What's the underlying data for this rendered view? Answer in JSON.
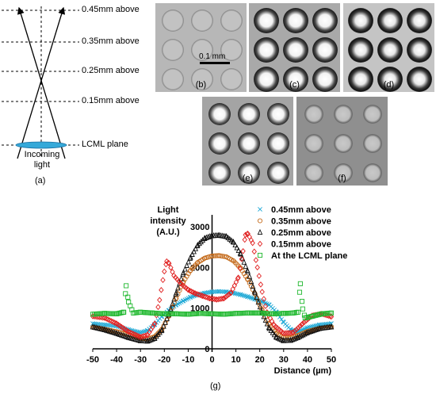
{
  "diagram": {
    "levels": [
      "0.45mm above",
      "0.35mm above",
      "0.25mm above",
      "0.15mm above",
      "LCML plane"
    ],
    "incoming_light": "Incoming\nlight",
    "caption": "(a)"
  },
  "micrographs": [
    {
      "caption": "(b)",
      "style": "faint"
    },
    {
      "caption": "(c)",
      "style": "ring"
    },
    {
      "caption": "(d)",
      "style": "dark-ring"
    },
    {
      "caption": "(e)",
      "style": "bright"
    },
    {
      "caption": "(f)",
      "style": "dim"
    }
  ],
  "scale_bar": "0.1 mm",
  "figure_caption": "(g)",
  "chart_data": {
    "type": "scatter",
    "ylabel": "Light\nintensity\n(A.U.)",
    "xlabel": "Distance (µm)",
    "xlim": [
      -50,
      50
    ],
    "ylim": [
      0,
      3000
    ],
    "x_ticks": [
      -50,
      -40,
      -30,
      -20,
      -10,
      0,
      10,
      20,
      30,
      40,
      50
    ],
    "y_ticks": [
      0,
      1000,
      2000,
      3000
    ],
    "legend_position": "top-right",
    "series": [
      {
        "name": "0.45mm above",
        "marker": "x",
        "color": "#1fa9d6",
        "points": [
          [
            -50,
            620
          ],
          [
            -45,
            590
          ],
          [
            -40,
            560
          ],
          [
            -35,
            470
          ],
          [
            -30,
            400
          ],
          [
            -27,
            450
          ],
          [
            -24,
            600
          ],
          [
            -21,
            800
          ],
          [
            -18,
            950
          ],
          [
            -15,
            1080
          ],
          [
            -12,
            1180
          ],
          [
            -9,
            1270
          ],
          [
            -6,
            1330
          ],
          [
            -3,
            1370
          ],
          [
            0,
            1400
          ],
          [
            3,
            1410
          ],
          [
            6,
            1400
          ],
          [
            9,
            1370
          ],
          [
            12,
            1330
          ],
          [
            15,
            1280
          ],
          [
            18,
            1220
          ],
          [
            21,
            1160
          ],
          [
            24,
            1080
          ],
          [
            27,
            900
          ],
          [
            30,
            650
          ],
          [
            33,
            470
          ],
          [
            36,
            420
          ],
          [
            40,
            520
          ],
          [
            45,
            590
          ],
          [
            50,
            620
          ]
        ]
      },
      {
        "name": "0.35mm above",
        "marker": "circle",
        "color": "#c46a1a",
        "points": [
          [
            -50,
            530
          ],
          [
            -45,
            480
          ],
          [
            -40,
            420
          ],
          [
            -35,
            350
          ],
          [
            -30,
            260
          ],
          [
            -27,
            240
          ],
          [
            -24,
            300
          ],
          [
            -21,
            480
          ],
          [
            -18,
            820
          ],
          [
            -15,
            1250
          ],
          [
            -12,
            1650
          ],
          [
            -9,
            1930
          ],
          [
            -6,
            2120
          ],
          [
            -3,
            2230
          ],
          [
            0,
            2280
          ],
          [
            3,
            2290
          ],
          [
            6,
            2260
          ],
          [
            9,
            2160
          ],
          [
            12,
            1980
          ],
          [
            15,
            1700
          ],
          [
            18,
            1350
          ],
          [
            21,
            950
          ],
          [
            24,
            600
          ],
          [
            27,
            370
          ],
          [
            30,
            280
          ],
          [
            33,
            270
          ],
          [
            36,
            330
          ],
          [
            40,
            430
          ],
          [
            45,
            500
          ],
          [
            50,
            540
          ]
        ]
      },
      {
        "name": "0.25mm above",
        "marker": "triangle",
        "color": "#111111",
        "points": [
          [
            -50,
            540
          ],
          [
            -45,
            470
          ],
          [
            -40,
            380
          ],
          [
            -35,
            280
          ],
          [
            -30,
            200
          ],
          [
            -27,
            190
          ],
          [
            -24,
            260
          ],
          [
            -21,
            460
          ],
          [
            -18,
            860
          ],
          [
            -15,
            1380
          ],
          [
            -12,
            1870
          ],
          [
            -9,
            2250
          ],
          [
            -6,
            2550
          ],
          [
            -3,
            2720
          ],
          [
            0,
            2780
          ],
          [
            3,
            2790
          ],
          [
            6,
            2760
          ],
          [
            9,
            2620
          ],
          [
            12,
            2330
          ],
          [
            15,
            1900
          ],
          [
            18,
            1380
          ],
          [
            21,
            880
          ],
          [
            24,
            500
          ],
          [
            27,
            280
          ],
          [
            30,
            200
          ],
          [
            33,
            210
          ],
          [
            36,
            280
          ],
          [
            40,
            400
          ],
          [
            45,
            500
          ],
          [
            50,
            540
          ]
        ]
      },
      {
        "name": "0.15mm above",
        "marker": "diamond",
        "color": "#e02020",
        "points": [
          [
            -50,
            800
          ],
          [
            -45,
            760
          ],
          [
            -40,
            620
          ],
          [
            -35,
            420
          ],
          [
            -30,
            290
          ],
          [
            -27,
            340
          ],
          [
            -24,
            620
          ],
          [
            -22,
            1200
          ],
          [
            -20,
            1900
          ],
          [
            -19,
            2150
          ],
          [
            -18,
            2100
          ],
          [
            -16,
            1800
          ],
          [
            -13,
            1600
          ],
          [
            -10,
            1450
          ],
          [
            -7,
            1360
          ],
          [
            -4,
            1300
          ],
          [
            -1,
            1240
          ],
          [
            2,
            1210
          ],
          [
            5,
            1240
          ],
          [
            8,
            1380
          ],
          [
            11,
            1750
          ],
          [
            13,
            2400
          ],
          [
            14,
            2800
          ],
          [
            15,
            2830
          ],
          [
            17,
            2600
          ],
          [
            19,
            2000
          ],
          [
            21,
            1400
          ],
          [
            23,
            900
          ],
          [
            26,
            580
          ],
          [
            30,
            380
          ],
          [
            34,
            400
          ],
          [
            38,
            620
          ],
          [
            42,
            820
          ],
          [
            46,
            860
          ],
          [
            50,
            790
          ]
        ]
      },
      {
        "name": "At the LCML plane",
        "marker": "square",
        "color": "#1fb82e",
        "points": [
          [
            -50,
            850
          ],
          [
            -45,
            870
          ],
          [
            -40,
            860
          ],
          [
            -37,
            900
          ],
          [
            -36,
            1550
          ],
          [
            -35,
            1150
          ],
          [
            -33,
            880
          ],
          [
            -30,
            900
          ],
          [
            -25,
            880
          ],
          [
            -20,
            860
          ],
          [
            -15,
            860
          ],
          [
            -10,
            850
          ],
          [
            -5,
            870
          ],
          [
            0,
            860
          ],
          [
            5,
            850
          ],
          [
            10,
            870
          ],
          [
            15,
            880
          ],
          [
            20,
            880
          ],
          [
            25,
            860
          ],
          [
            30,
            870
          ],
          [
            34,
            880
          ],
          [
            36,
            900
          ],
          [
            37,
            1600
          ],
          [
            38,
            980
          ],
          [
            39,
            760
          ],
          [
            42,
            800
          ],
          [
            46,
            860
          ],
          [
            50,
            880
          ]
        ]
      }
    ]
  }
}
